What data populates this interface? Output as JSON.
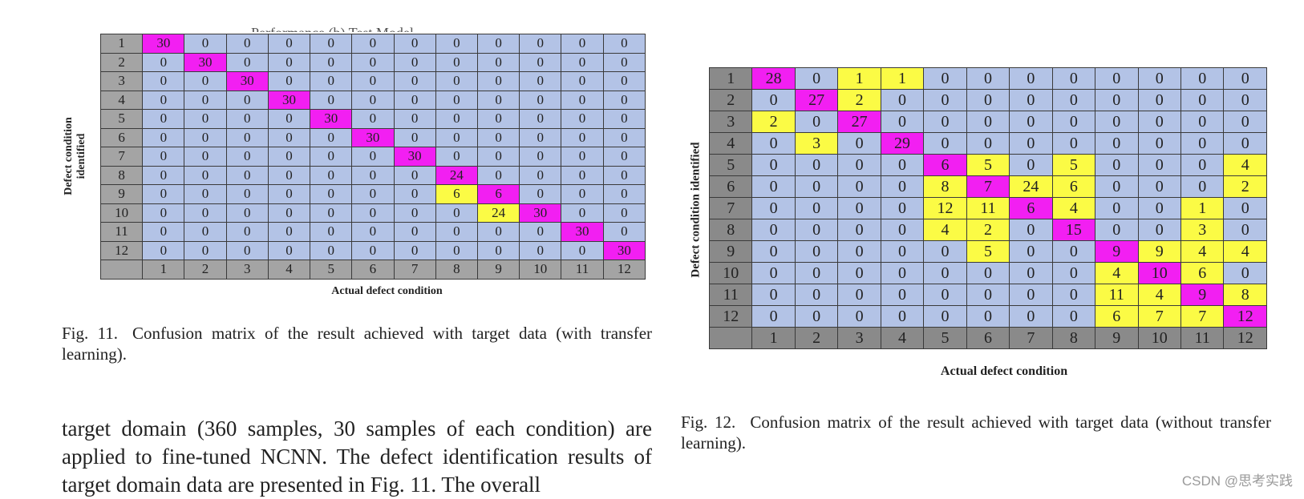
{
  "figure11": {
    "title_clipped": "Performance (b) Test Model",
    "ylabel_line1": "Defect condition",
    "ylabel_line2": "identified",
    "xlabel": "Actual defect condition",
    "caption_lead": "Fig. 11.",
    "caption_text": "Confusion matrix of the result achieved with target data (with transfer learning)."
  },
  "figure12": {
    "ylabel": "Defect condition identified",
    "xlabel": "Actual defect condition",
    "caption_lead": "Fig. 12.",
    "caption_text": "Confusion matrix of the result achieved with target data (without transfer learning)."
  },
  "body_text": "target domain (360 samples, 30 samples of each condition) are applied to fine-tuned NCNN. The defect identification results of target domain data are presented in Fig. 11. The overall",
  "watermark": "CSDN @思考实践",
  "colors": {
    "blue": "#b3c3e6",
    "magenta": "#f21ff2",
    "yellow": "#fbfb45",
    "gray_light": "#a4a4a4",
    "gray_dark": "#8a8a8a"
  },
  "chart_data": [
    {
      "type": "heatmap",
      "title": "Fig. 11. Confusion matrix of the result achieved with target data (with transfer learning).",
      "xlabel": "Actual defect condition",
      "ylabel": "Defect condition identified",
      "row_labels": [
        "1",
        "2",
        "3",
        "4",
        "5",
        "6",
        "7",
        "8",
        "9",
        "10",
        "11",
        "12"
      ],
      "col_labels": [
        "1",
        "2",
        "3",
        "4",
        "5",
        "6",
        "7",
        "8",
        "9",
        "10",
        "11",
        "12"
      ],
      "values": [
        [
          30,
          0,
          0,
          0,
          0,
          0,
          0,
          0,
          0,
          0,
          0,
          0
        ],
        [
          0,
          30,
          0,
          0,
          0,
          0,
          0,
          0,
          0,
          0,
          0,
          0
        ],
        [
          0,
          0,
          30,
          0,
          0,
          0,
          0,
          0,
          0,
          0,
          0,
          0
        ],
        [
          0,
          0,
          0,
          30,
          0,
          0,
          0,
          0,
          0,
          0,
          0,
          0
        ],
        [
          0,
          0,
          0,
          0,
          30,
          0,
          0,
          0,
          0,
          0,
          0,
          0
        ],
        [
          0,
          0,
          0,
          0,
          0,
          30,
          0,
          0,
          0,
          0,
          0,
          0
        ],
        [
          0,
          0,
          0,
          0,
          0,
          0,
          30,
          0,
          0,
          0,
          0,
          0
        ],
        [
          0,
          0,
          0,
          0,
          0,
          0,
          0,
          24,
          0,
          0,
          0,
          0
        ],
        [
          0,
          0,
          0,
          0,
          0,
          0,
          0,
          6,
          6,
          0,
          0,
          0
        ],
        [
          0,
          0,
          0,
          0,
          0,
          0,
          0,
          0,
          24,
          30,
          0,
          0
        ],
        [
          0,
          0,
          0,
          0,
          0,
          0,
          0,
          0,
          0,
          0,
          30,
          0
        ],
        [
          0,
          0,
          0,
          0,
          0,
          0,
          0,
          0,
          0,
          0,
          0,
          30
        ]
      ]
    },
    {
      "type": "heatmap",
      "title": "Fig. 12. Confusion matrix of the result achieved with target data (without transfer learning).",
      "xlabel": "Actual defect condition",
      "ylabel": "Defect condition identified",
      "row_labels": [
        "1",
        "2",
        "3",
        "4",
        "5",
        "6",
        "7",
        "8",
        "9",
        "10",
        "11",
        "12"
      ],
      "col_labels": [
        "1",
        "2",
        "3",
        "4",
        "5",
        "6",
        "7",
        "8",
        "9",
        "10",
        "11",
        "12"
      ],
      "values": [
        [
          28,
          0,
          1,
          1,
          0,
          0,
          0,
          0,
          0,
          0,
          0,
          0
        ],
        [
          0,
          27,
          2,
          0,
          0,
          0,
          0,
          0,
          0,
          0,
          0,
          0
        ],
        [
          2,
          0,
          27,
          0,
          0,
          0,
          0,
          0,
          0,
          0,
          0,
          0
        ],
        [
          0,
          3,
          0,
          29,
          0,
          0,
          0,
          0,
          0,
          0,
          0,
          0
        ],
        [
          0,
          0,
          0,
          0,
          6,
          5,
          0,
          5,
          0,
          0,
          0,
          4
        ],
        [
          0,
          0,
          0,
          0,
          8,
          7,
          24,
          6,
          0,
          0,
          0,
          2
        ],
        [
          0,
          0,
          0,
          0,
          12,
          11,
          6,
          4,
          0,
          0,
          1,
          0
        ],
        [
          0,
          0,
          0,
          0,
          4,
          2,
          0,
          15,
          0,
          0,
          3,
          0
        ],
        [
          0,
          0,
          0,
          0,
          0,
          5,
          0,
          0,
          9,
          9,
          4,
          4
        ],
        [
          0,
          0,
          0,
          0,
          0,
          0,
          0,
          0,
          4,
          10,
          6,
          0
        ],
        [
          0,
          0,
          0,
          0,
          0,
          0,
          0,
          0,
          11,
          4,
          9,
          8
        ],
        [
          0,
          0,
          0,
          0,
          0,
          0,
          0,
          0,
          6,
          7,
          7,
          12
        ]
      ]
    }
  ]
}
